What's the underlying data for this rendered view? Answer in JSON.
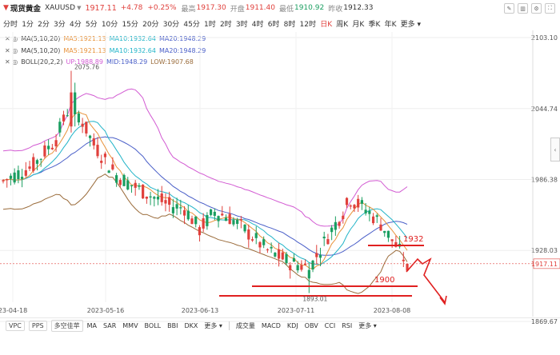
{
  "header": {
    "name": "现货黄金",
    "code": "XAUUSD",
    "price": "1917.11",
    "change": "+4.78",
    "change_pct": "+0.25%",
    "high_label": "最高",
    "high": "1917.30",
    "open_label": "开盘",
    "open": "1911.40",
    "low_label": "最低",
    "low": "1910.92",
    "prev_label": "昨收",
    "prev": "1912.33"
  },
  "periods": [
    "分时",
    "1分",
    "2分",
    "3分",
    "4分",
    "5分",
    "10分",
    "15分",
    "20分",
    "30分",
    "45分",
    "1时",
    "2时",
    "3时",
    "4时",
    "6时",
    "8时",
    "12时",
    "日K",
    "周K",
    "月K",
    "季K",
    "年K",
    "更多"
  ],
  "active_period": "日K",
  "legends": [
    {
      "items": [
        {
          "text": "MA(5,10,20)",
          "color": "#444444"
        },
        {
          "text": "MA5:1921.13",
          "color": "#e8923a"
        },
        {
          "text": "MA10:1932.64",
          "color": "#22b4c8"
        },
        {
          "text": "MA20:1948.29",
          "color": "#4a5fc8"
        }
      ]
    },
    {
      "items": [
        {
          "text": "MA(5,10,20)",
          "color": "#444444"
        },
        {
          "text": "MA5:1921.13",
          "color": "#e8923a"
        },
        {
          "text": "MA10:1932.64",
          "color": "#22b4c8"
        },
        {
          "text": "MA20:1948.29",
          "color": "#4a5fc8"
        }
      ]
    },
    {
      "items": [
        {
          "text": "BOLL(20,2,2)",
          "color": "#444444"
        },
        {
          "text": "UP:1988.89",
          "color": "#d25ad2"
        },
        {
          "text": "MID:1948.29",
          "color": "#4a5fc8"
        },
        {
          "text": "LOW:1907.68",
          "color": "#9a6b3a"
        }
      ]
    }
  ],
  "chart_data": {
    "type": "candlestick",
    "yaxis_ticks": [
      "2103.10",
      "2044.74",
      "1986.38",
      "1928.03",
      "1869.67"
    ],
    "current_price_label": "1917.11",
    "xaxis_ticks": [
      "23-04-18",
      "2023-05-16",
      "2023-06-13",
      "2023-07-11",
      "2023-08-08"
    ],
    "annotations": {
      "high": "2075.76",
      "low": "1893.01",
      "level_1932": "1932",
      "level_1900": "1900"
    },
    "colors": {
      "up": "#e0403c",
      "down": "#1a9e60",
      "ma5": "#e8923a",
      "ma10": "#22b4c8",
      "ma20": "#4a5fc8",
      "boll_up": "#d25ad2",
      "boll_low": "#9a6b3a",
      "drawing": "#e02020"
    }
  },
  "bottom": {
    "chips": [
      "VPC",
      "PPS",
      "多空佳苹"
    ],
    "indicators_main": [
      "MA",
      "SAR",
      "MMV",
      "BOLL",
      "BBI",
      "DKX",
      "更多"
    ],
    "indicators_sub": [
      "成交量",
      "MACD",
      "KDJ",
      "OBV",
      "CCI",
      "RSI",
      "更多"
    ]
  }
}
